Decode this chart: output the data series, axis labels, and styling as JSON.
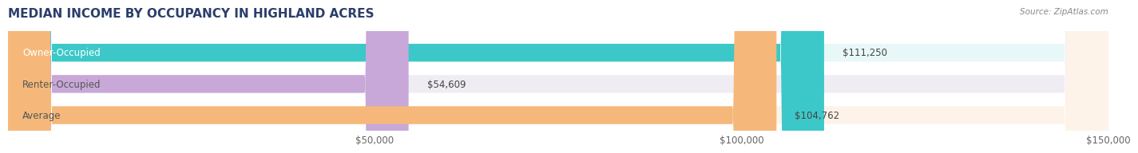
{
  "title": "MEDIAN INCOME BY OCCUPANCY IN HIGHLAND ACRES",
  "source": "Source: ZipAtlas.com",
  "categories": [
    "Owner-Occupied",
    "Renter-Occupied",
    "Average"
  ],
  "values": [
    111250,
    54609,
    104762
  ],
  "labels": [
    "$111,250",
    "$54,609",
    "$104,762"
  ],
  "bar_colors": [
    "#3cc8c8",
    "#c8a8d8",
    "#f5b87a"
  ],
  "bar_bg_colors": [
    "#e8f8f8",
    "#f0ecf4",
    "#fdf3e8"
  ],
  "x_max": 150000,
  "x_ticks": [
    0,
    50000,
    100000,
    150000
  ],
  "x_tick_labels": [
    "$50,000",
    "$100,000",
    "$150,000"
  ],
  "title_color": "#2c3e6b",
  "source_color": "#888888",
  "label_color_dark": "#555555",
  "background_color": "#ffffff",
  "title_fontsize": 11,
  "bar_fontsize": 8.5,
  "tick_fontsize": 8.5
}
